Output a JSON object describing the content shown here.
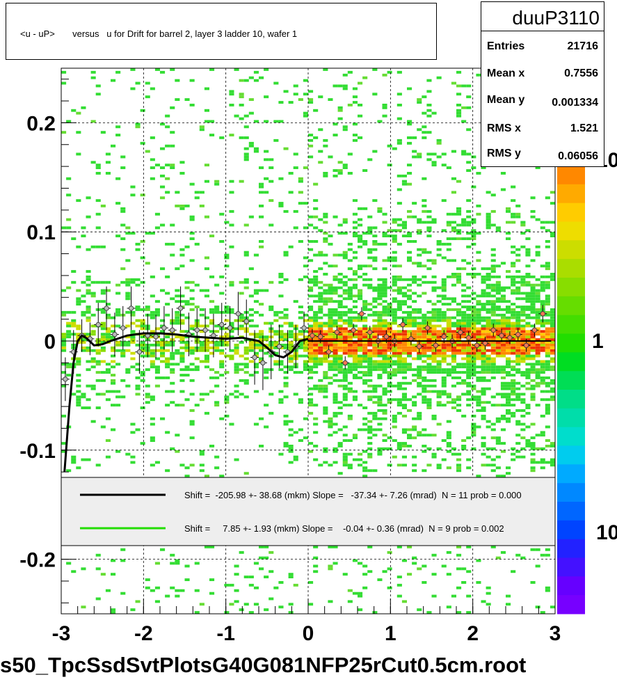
{
  "title": "<u - uP>       versus   u for Drift for barrel 2, layer 3 ladder 10, wafer 1",
  "stats": {
    "name": "duuP3110",
    "rows": [
      {
        "label": "Entries",
        "value": "21716"
      },
      {
        "label": "Mean x",
        "value": "0.7556"
      },
      {
        "label": "Mean y",
        "value": "0.001334"
      },
      {
        "label": "RMS x",
        "value": "1.521"
      },
      {
        "label": "RMS y",
        "value": "0.06056"
      }
    ]
  },
  "file_label": "s50_TpcSsdSvtPlotsG40G081NFP25rCut0.5cm.root",
  "legend": [
    {
      "color": "#000000",
      "text": "Shift =  -205.98 +- 38.68 (mkm) Slope =   -37.34 +- 7.26 (mrad)  N = 11 prob = 0.000"
    },
    {
      "color": "#22dd00",
      "text": "Shift =     7.85 +- 1.93 (mkm) Slope =    -0.04 +- 0.36 (mrad)  N = 9 prob = 0.002"
    }
  ],
  "colors": {
    "palette_top": "#ff8800",
    "palette_bottom": "#7700ff",
    "fit_curve": "#000000",
    "fit_line": "#22dd00"
  },
  "chart_data": {
    "type": "heatmap",
    "xlim": [
      -3,
      3
    ],
    "ylim": [
      -0.25,
      0.25
    ],
    "x_ticks": [
      "-3",
      "-2",
      "-1",
      "0",
      "1",
      "2",
      "3"
    ],
    "y_ticks": [
      "0.2",
      "0.1",
      "0",
      "-0.1",
      "-0.2"
    ],
    "z_labels": [
      "10",
      "1",
      "10"
    ],
    "grid": true,
    "fit_curve": {
      "x": [
        -2.96,
        -2.9,
        -2.85,
        -2.8,
        -2.75,
        -2.7,
        -2.6,
        -2.5,
        -2.4,
        -2.2,
        -2.0,
        -1.8,
        -1.6,
        -1.4,
        -1.2,
        -1.0,
        -0.8,
        -0.6,
        -0.5,
        -0.4,
        -0.3,
        -0.2,
        -0.1,
        0.0
      ],
      "y": [
        -0.12,
        -0.06,
        -0.02,
        0.0,
        0.005,
        0.003,
        -0.004,
        -0.003,
        0.0,
        0.005,
        0.007,
        0.007,
        0.006,
        0.004,
        0.003,
        0.002,
        0.003,
        0.0,
        -0.006,
        -0.013,
        -0.015,
        -0.01,
        0.0,
        0.002
      ]
    },
    "fit_line": {
      "x": [
        0.0,
        2.95
      ],
      "y": [
        0.0,
        0.0
      ]
    },
    "profile_left": {
      "x": [
        -2.95,
        -2.85,
        -2.75,
        -2.65,
        -2.55,
        -2.45,
        -2.35,
        -2.25,
        -2.15,
        -2.05,
        -1.95,
        -1.85,
        -1.75,
        -1.65,
        -1.55,
        -1.45,
        -1.35,
        -1.25,
        -1.15,
        -1.05,
        -0.95,
        -0.85,
        -0.75,
        -0.65,
        -0.55,
        -0.45,
        -0.35,
        -0.25,
        -0.15,
        -0.05
      ],
      "y": [
        -0.035,
        -0.01,
        0.005,
        0.002,
        0.015,
        0.03,
        0.006,
        0.012,
        0.03,
        -0.01,
        0.005,
        0.004,
        0.012,
        0.01,
        0.03,
        0.006,
        0.01,
        0.01,
        0.005,
        0.015,
        0.012,
        0.025,
        0.018,
        -0.015,
        -0.02,
        -0.01,
        -0.005,
        -0.01,
        -0.005,
        0.012
      ],
      "err": [
        0.02,
        0.02,
        0.015,
        0.015,
        0.02,
        0.02,
        0.02,
        0.02,
        0.02,
        0.02,
        0.02,
        0.02,
        0.02,
        0.02,
        0.02,
        0.02,
        0.02,
        0.02,
        0.02,
        0.02,
        0.02,
        0.02,
        0.02,
        0.025,
        0.025,
        0.025,
        0.02,
        0.02,
        0.02,
        0.015
      ]
    },
    "profile_right": {
      "x": [
        0.05,
        0.15,
        0.25,
        0.35,
        0.45,
        0.55,
        0.65,
        0.75,
        0.85,
        0.95,
        1.05,
        1.15,
        1.25,
        1.35,
        1.45,
        1.55,
        1.65,
        1.75,
        1.85,
        1.95,
        2.05,
        2.15,
        2.25,
        2.35,
        2.45,
        2.55,
        2.65,
        2.75,
        2.85
      ],
      "y": [
        0.005,
        0.004,
        -0.01,
        0.008,
        -0.02,
        0.01,
        0.025,
        0.008,
        0.0,
        0.004,
        0.0,
        0.015,
        0.002,
        -0.005,
        0.012,
        -0.004,
        0.004,
        0.0,
        0.008,
        0.003,
        -0.004,
        -0.002,
        0.01,
        0.005,
        0.003,
        0.006,
        -0.004,
        0.01,
        0.025
      ],
      "err": [
        0.006,
        0.006,
        0.006,
        0.006,
        0.006,
        0.006,
        0.006,
        0.006,
        0.006,
        0.006,
        0.006,
        0.006,
        0.006,
        0.006,
        0.006,
        0.006,
        0.006,
        0.006,
        0.006,
        0.006,
        0.006,
        0.006,
        0.006,
        0.006,
        0.006,
        0.006,
        0.006,
        0.006,
        0.008
      ]
    }
  }
}
